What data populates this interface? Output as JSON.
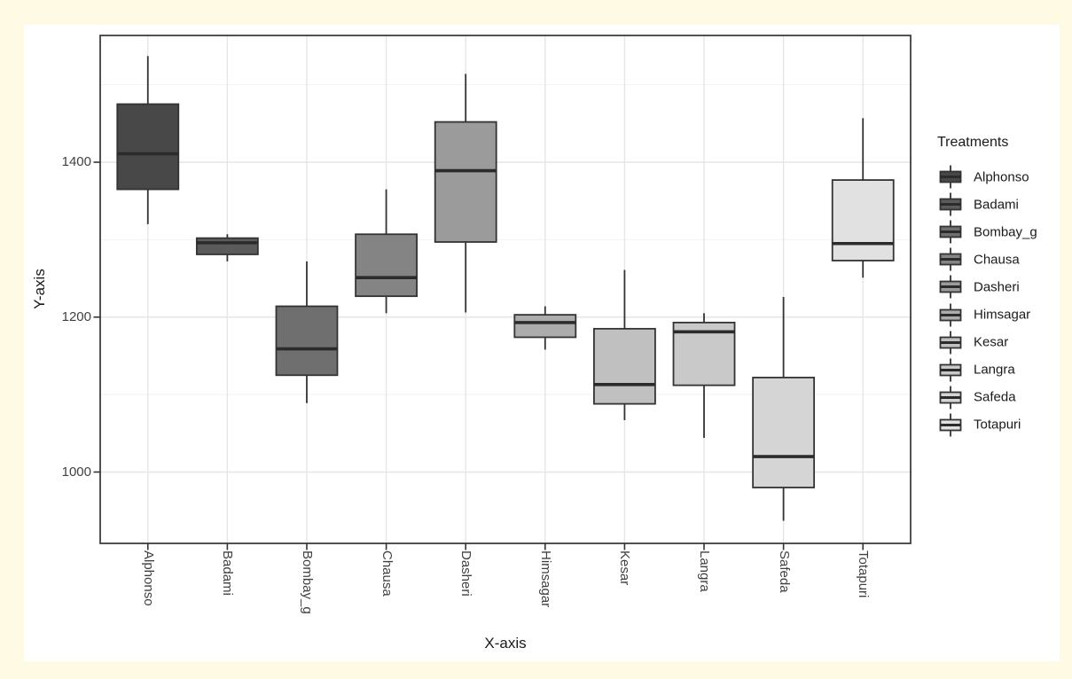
{
  "page": {
    "background_color": "#FFFAE4",
    "figure_background_color": "#FFFFFF"
  },
  "chart_data": {
    "type": "boxplot",
    "title": "",
    "xlabel": "X-axis",
    "ylabel": "Y-axis",
    "ylim": [
      908,
      1564
    ],
    "grid": "on",
    "y_ticks": [
      1000,
      1200,
      1400
    ],
    "y_minor_gridlines": [
      1100,
      1300,
      1500
    ],
    "categories": [
      "Alphonso",
      "Badami",
      "Bombay_g",
      "Chausa",
      "Dasheri",
      "Himsagar",
      "Kesar",
      "Langra",
      "Safeda",
      "Totapuri"
    ],
    "boxes": [
      {
        "label": "Alphonso",
        "min": 1320,
        "q1": 1365,
        "median": 1411,
        "q3": 1475,
        "max": 1537,
        "fill": "#484848"
      },
      {
        "label": "Badami",
        "min": 1272,
        "q1": 1281,
        "median": 1296,
        "q3": 1302,
        "max": 1307,
        "fill": "#5B5B5B"
      },
      {
        "label": "Bombay_g",
        "min": 1089,
        "q1": 1125,
        "median": 1159,
        "q3": 1214,
        "max": 1272,
        "fill": "#6F6F6F"
      },
      {
        "label": "Chausa",
        "min": 1205,
        "q1": 1227,
        "median": 1251,
        "q3": 1307,
        "max": 1365,
        "fill": "#848484"
      },
      {
        "label": "Dasheri",
        "min": 1206,
        "q1": 1297,
        "median": 1389,
        "q3": 1452,
        "max": 1514,
        "fill": "#9B9B9B"
      },
      {
        "label": "Himsagar",
        "min": 1158,
        "q1": 1174,
        "median": 1193,
        "q3": 1203,
        "max": 1214,
        "fill": "#ACACAC"
      },
      {
        "label": "Kesar",
        "min": 1067,
        "q1": 1088,
        "median": 1113,
        "q3": 1185,
        "max": 1261,
        "fill": "#C0C0C0"
      },
      {
        "label": "Langra",
        "min": 1044,
        "q1": 1112,
        "median": 1181,
        "q3": 1193,
        "max": 1205,
        "fill": "#C9C9C9"
      },
      {
        "label": "Safeda",
        "min": 937,
        "q1": 980,
        "median": 1020,
        "q3": 1122,
        "max": 1226,
        "fill": "#D5D5D5"
      },
      {
        "label": "Totapuri",
        "min": 1251,
        "q1": 1273,
        "median": 1295,
        "q3": 1377,
        "max": 1457,
        "fill": "#E1E1E1"
      }
    ],
    "legend": {
      "title": "Treatments",
      "position": "right",
      "entries": [
        "Alphonso",
        "Badami",
        "Bombay_g",
        "Chausa",
        "Dasheri",
        "Himsagar",
        "Kesar",
        "Langra",
        "Safeda",
        "Totapuri"
      ]
    },
    "colors": {
      "panel_background": "#FFFFFF",
      "panel_border": "#333333",
      "grid_major": "#E6E6E6",
      "grid_minor": "#F2F2F2",
      "box_border": "#333333",
      "median_line": "#2B2B2B",
      "whisker": "#333333",
      "tick_mark": "#333333",
      "tick_label": "#404040",
      "axis_title": "#1A1A1A"
    }
  }
}
